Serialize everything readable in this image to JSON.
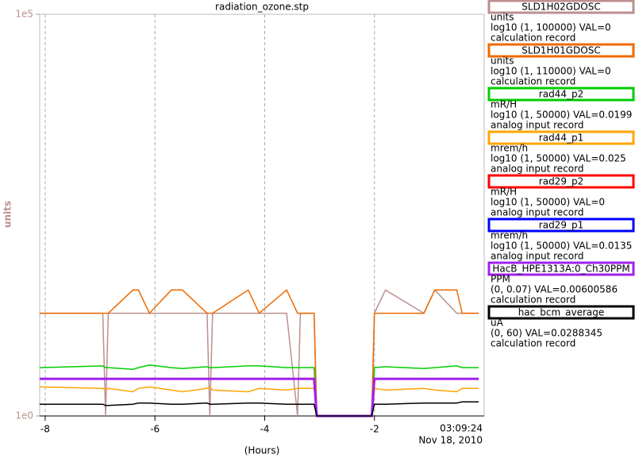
{
  "chart_data": {
    "type": "line",
    "title": "radiation_ozone.stp",
    "x_label": "(Hours)",
    "y_label": "units",
    "time": "03:09:24",
    "date": "Nov 18, 2010",
    "y_scale": "log",
    "grid": true,
    "xlim": [
      -8.1,
      0
    ],
    "xticks": [
      -8,
      -6,
      -4,
      -2
    ],
    "ylim": [
      1,
      100000
    ],
    "yticks": [
      {
        "value": 100000,
        "label": "1e5"
      },
      {
        "value": 1,
        "label": "1e0"
      }
    ],
    "x": [
      -8.1,
      -6.95,
      -6.9,
      -6.85,
      -6.4,
      -6.3,
      -6.1,
      -5.7,
      -5.5,
      -5.05,
      -5.0,
      -4.95,
      -4.3,
      -4.1,
      -3.6,
      -3.4,
      -3.35,
      -3.1,
      -3.05,
      -2.05,
      -2.0,
      -1.8,
      -1.1,
      -0.9,
      -0.5,
      -0.4,
      -0.1
    ],
    "series": [
      {
        "name": "SLD1H02GDOSC",
        "color": "#bc8f8f",
        "unit": "units",
        "range": "log10 (1, 100000) VAL=0",
        "record": "calculation record",
        "values": [
          19,
          19,
          1,
          19,
          19,
          19,
          19,
          19,
          19,
          19,
          1,
          19,
          19,
          19,
          19,
          1,
          19,
          19,
          1,
          1,
          19,
          37,
          19,
          37,
          19,
          19,
          19
        ]
      },
      {
        "name": "SLD1H01GDOSC",
        "color": "#ee6a00",
        "unit": "units",
        "range": "log10 (1, 110000) VAL=0",
        "record": "calculation record",
        "values": [
          19,
          19,
          19,
          19,
          37,
          37,
          19,
          37,
          37,
          19,
          19,
          19,
          37,
          19,
          37,
          19,
          19,
          19,
          1,
          1,
          19,
          19,
          19,
          37,
          37,
          19,
          19
        ]
      },
      {
        "name": "rad44_p2",
        "color": "#00cd00",
        "unit": "mR/H",
        "range": "log10 (1, 50000) VAL=0.0199",
        "record": "analog input record",
        "values": [
          4,
          4.2,
          4,
          4,
          3.8,
          4,
          4.3,
          4,
          3.9,
          4.1,
          4,
          4,
          4.2,
          4.2,
          4,
          4,
          4,
          4,
          1,
          1,
          4,
          4.1,
          3.9,
          4,
          4.2,
          4,
          4
        ]
      },
      {
        "name": "rad44_p1",
        "color": "#ffa500",
        "unit": "mrem/h",
        "range": "log10 (1, 50000) VAL=0.025",
        "record": "analog input record",
        "values": [
          2.3,
          2.2,
          2.1,
          2.2,
          2.0,
          2.2,
          2.3,
          2.1,
          2.0,
          2.2,
          2.3,
          2.1,
          2.0,
          2.2,
          2.1,
          2.2,
          2.2,
          2.2,
          1,
          1,
          2.2,
          2.1,
          2.2,
          2.1,
          2.0,
          2.2,
          2.2
        ]
      },
      {
        "name": "rad29_p2",
        "color": "#ff0000",
        "unit": "mR/H",
        "range": "log10 (1, 50000) VAL=0",
        "record": "analog input record",
        "values": [
          null,
          null,
          null,
          null,
          null,
          null,
          null,
          null,
          null,
          null,
          null,
          null,
          null,
          null,
          null,
          null,
          null,
          null,
          null,
          null,
          null,
          null,
          null,
          null,
          null,
          null,
          null
        ]
      },
      {
        "name": "rad29_p1",
        "color": "#0000ff",
        "unit": "mrem/h",
        "range": "log10 (1, 50000) VAL=0.0135",
        "record": "analog input record",
        "values": [
          null,
          null,
          null,
          null,
          null,
          null,
          null,
          null,
          null,
          null,
          null,
          null,
          null,
          null,
          null,
          null,
          null,
          null,
          null,
          null,
          null,
          null,
          null,
          null,
          null,
          null,
          null
        ]
      },
      {
        "name": "HacB_HPE1313A:0_Ch30PPM",
        "color": "#a020f0",
        "unit": "PPM",
        "range": "(0, 0.07) VAL=0.00600586",
        "record": "calculation record",
        "values": [
          2.9,
          2.9,
          2.9,
          2.9,
          2.9,
          2.9,
          2.9,
          2.9,
          2.9,
          2.9,
          2.9,
          2.9,
          2.9,
          2.9,
          2.9,
          2.9,
          2.9,
          2.9,
          1,
          1,
          2.9,
          2.9,
          2.9,
          2.9,
          2.9,
          2.9,
          2.9
        ]
      },
      {
        "name": "hac_bcm_average",
        "color": "#000000",
        "unit": "uA",
        "range": "(0, 60) VAL=0.0288345",
        "record": "calculation record",
        "values": [
          1.4,
          1.4,
          1.35,
          1.35,
          1.4,
          1.45,
          1.45,
          1.4,
          1.4,
          1.45,
          1.4,
          1.4,
          1.45,
          1.45,
          1.4,
          1.4,
          1.4,
          1.4,
          1,
          1,
          1.4,
          1.4,
          1.45,
          1.45,
          1.45,
          1.5,
          1.5
        ]
      }
    ]
  }
}
